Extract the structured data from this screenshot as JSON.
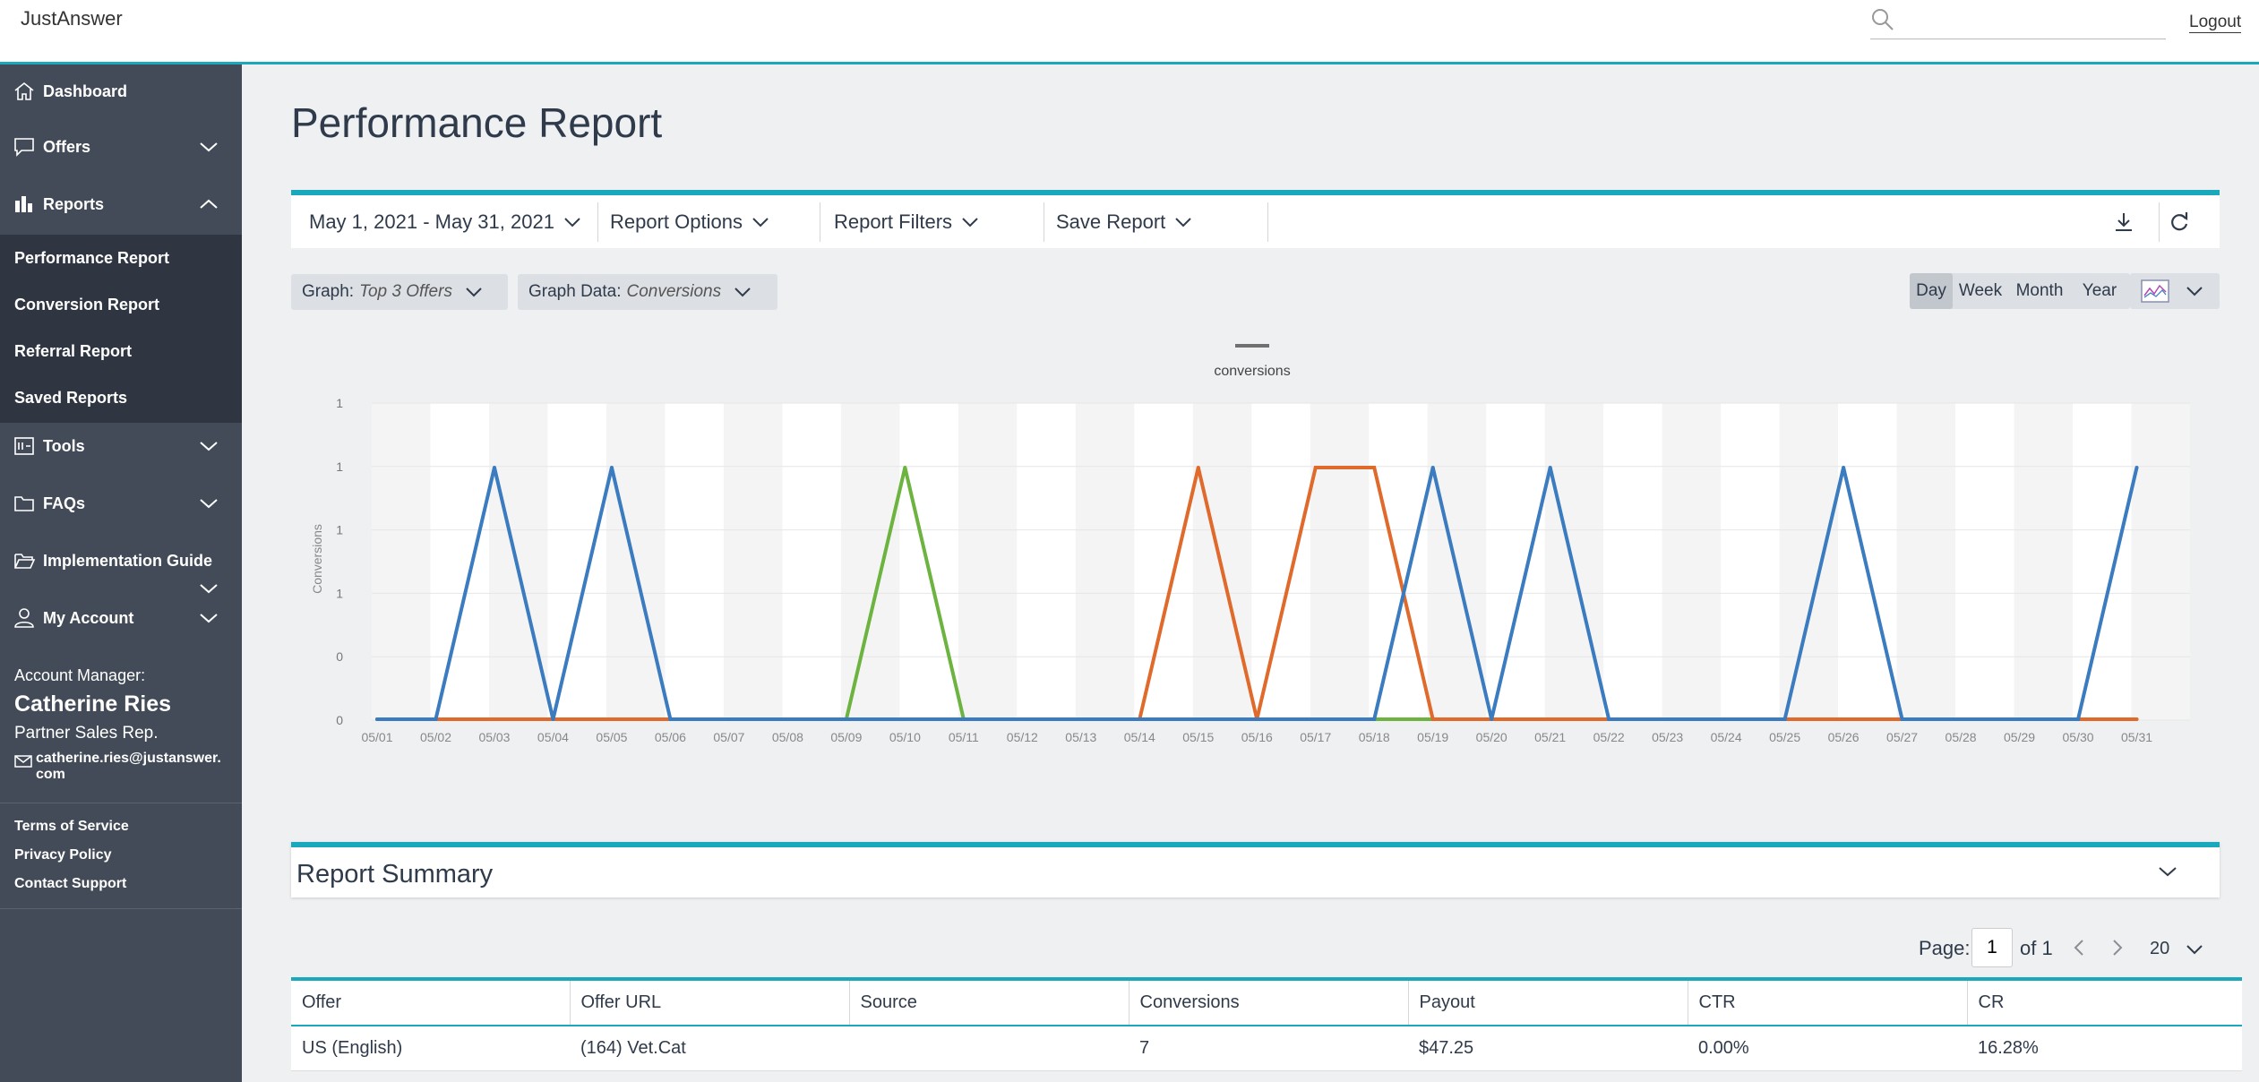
{
  "header": {
    "brand": "JustAnswer",
    "search_placeholder": "",
    "logout": "Logout"
  },
  "sidebar": {
    "nav": [
      {
        "label": "Dashboard",
        "icon": "home-icon"
      },
      {
        "label": "Offers",
        "icon": "chat-icon"
      },
      {
        "label": "Reports",
        "icon": "bar-chart-icon"
      },
      {
        "label": "Tools",
        "icon": "tools-icon"
      },
      {
        "label": "FAQs",
        "icon": "folder-icon"
      },
      {
        "label": "Implementation Guide",
        "icon": "folder-open-icon"
      },
      {
        "label": "My Account",
        "icon": "user-icon"
      }
    ],
    "reports_sub": [
      "Performance Report",
      "Conversion Report",
      "Referral Report",
      "Saved Reports"
    ],
    "account": {
      "title": "Account Manager:",
      "name": "Catherine Ries",
      "role": "Partner Sales Rep.",
      "email_line1": "catherine.ries@justanswer.",
      "email_line2": "com"
    },
    "legal": [
      "Terms of Service",
      "Privacy Policy",
      "Contact Support"
    ]
  },
  "main": {
    "title": "Performance Report",
    "toolbar": {
      "date_range": "May 1, 2021 - May 31, 2021",
      "report_options": "Report Options",
      "report_filters": "Report Filters",
      "save_report": "Save Report"
    },
    "graph_controls": {
      "graph_label": "Graph:",
      "graph_value": "Top 3 Offers",
      "data_label": "Graph Data:",
      "data_value": "Conversions"
    },
    "periods": [
      "Day",
      "Week",
      "Month",
      "Year"
    ],
    "active_period": "Day"
  },
  "chart_data": {
    "type": "line",
    "legend": "conversions",
    "ylabel": "Conversions",
    "y_tick_labels": [
      "0",
      "0",
      "1",
      "1",
      "1",
      "1"
    ],
    "ylim": [
      0,
      1
    ],
    "grid": true,
    "x": [
      "05/01",
      "05/02",
      "05/03",
      "05/04",
      "05/05",
      "05/06",
      "05/07",
      "05/08",
      "05/09",
      "05/10",
      "05/11",
      "05/12",
      "05/13",
      "05/14",
      "05/15",
      "05/16",
      "05/17",
      "05/18",
      "05/19",
      "05/20",
      "05/21",
      "05/22",
      "05/23",
      "05/24",
      "05/25",
      "05/26",
      "05/27",
      "05/28",
      "05/29",
      "05/30",
      "05/31"
    ],
    "series": [
      {
        "color": "#3b7bbf",
        "values": [
          0,
          0,
          1,
          0,
          1,
          0,
          0,
          0,
          0,
          0,
          0,
          0,
          0,
          0,
          0,
          0,
          0,
          0,
          1,
          0,
          1,
          0,
          0,
          0,
          0,
          1,
          0,
          0,
          0,
          0,
          1
        ]
      },
      {
        "color": "#e06a2b",
        "values": [
          0,
          0,
          0,
          0,
          0,
          0,
          0,
          0,
          0,
          0,
          0,
          0,
          0,
          0,
          1,
          0,
          1,
          1,
          0,
          0,
          0,
          0,
          0,
          0,
          0,
          0,
          0,
          0,
          0,
          0,
          0
        ]
      },
      {
        "color": "#6cb33f",
        "values": [
          0,
          0,
          0,
          0,
          0,
          0,
          0,
          0,
          0,
          1,
          0,
          0,
          0,
          0,
          0,
          0,
          0,
          0,
          0,
          0,
          0,
          0,
          0,
          0,
          0,
          0,
          0,
          0,
          0,
          0,
          0
        ]
      }
    ]
  },
  "summary": {
    "title": "Report Summary",
    "page_label": "Page:",
    "page_value": "1",
    "page_of": "of 1",
    "per_page": "20",
    "columns": [
      "Offer",
      "Offer URL",
      "Source",
      "Conversions",
      "Payout",
      "CTR",
      "CR"
    ],
    "rows": [
      [
        "US (English)",
        "(164) Vet.Cat",
        "",
        "7",
        "$47.25",
        "0.00%",
        "16.28%"
      ]
    ]
  }
}
